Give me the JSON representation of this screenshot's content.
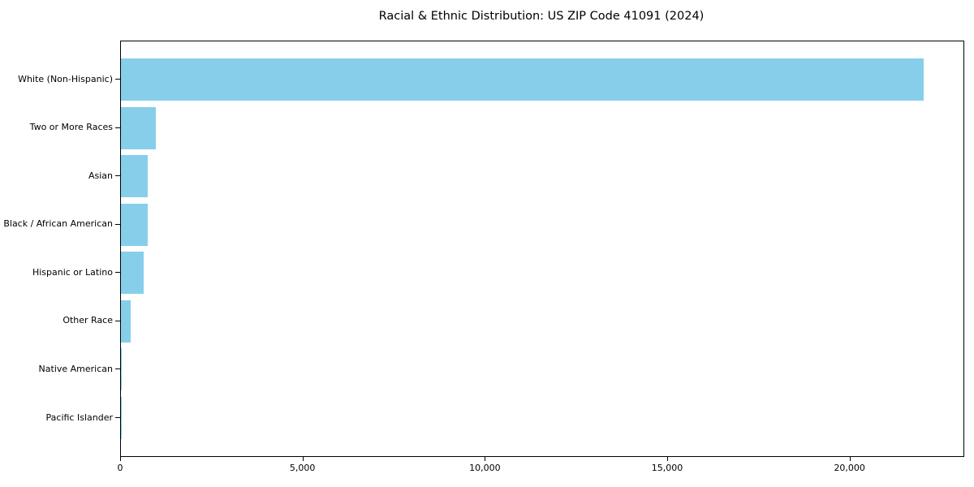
{
  "header": {
    "title": "Racial & Ethnic Distribution: US ZIP Code 41091 (2024)"
  },
  "chart_data": {
    "type": "bar",
    "orientation": "horizontal",
    "title": "Racial & Ethnic Distribution: US ZIP Code 41091 (2024)",
    "xlabel": "",
    "ylabel": "",
    "categories": [
      "White (Non-Hispanic)",
      "Two or More Races",
      "Asian",
      "Black / African American",
      "Hispanic or Latino",
      "Other Race",
      "Native American",
      "Pacific Islander"
    ],
    "values": [
      22000,
      950,
      730,
      725,
      615,
      260,
      20,
      5
    ],
    "bar_color": "#87CEEB",
    "axis_color": "#000000",
    "background_color": "#ffffff",
    "xlim": [
      0,
      23100
    ],
    "x_ticks": [
      0,
      5000,
      10000,
      15000,
      20000
    ],
    "x_tick_labels": [
      "0",
      "5,000",
      "10,000",
      "15,000",
      "20,000"
    ],
    "grid": false,
    "legend": null
  }
}
